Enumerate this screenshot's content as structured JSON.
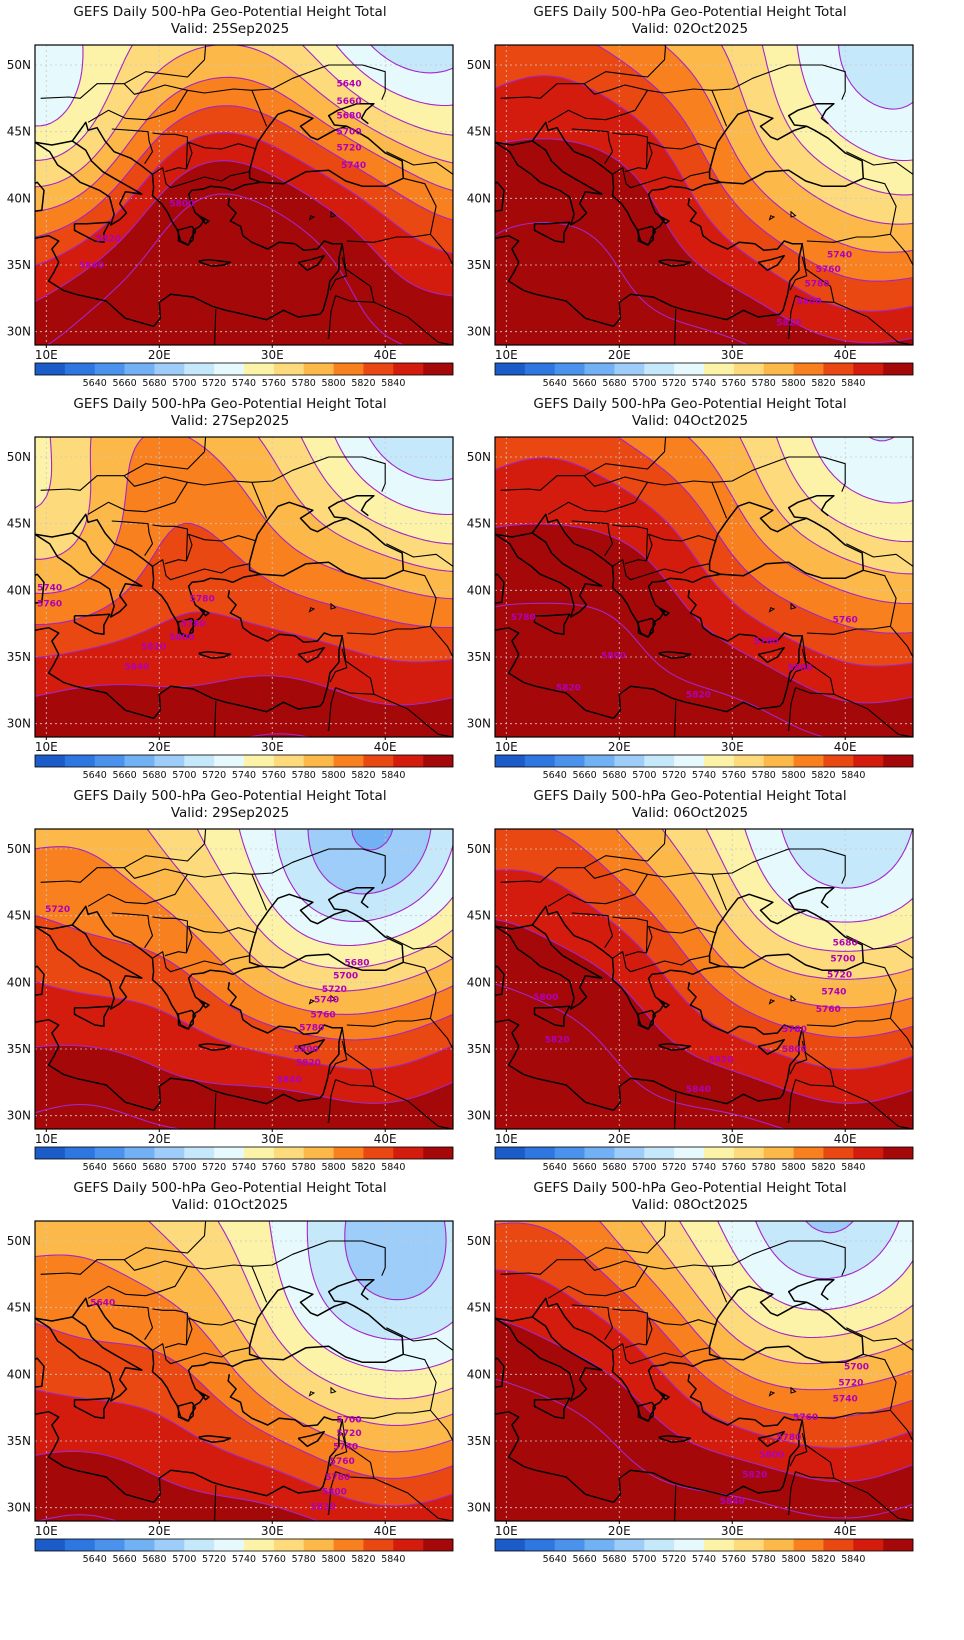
{
  "panels": [
    {
      "title": "GEFS Daily 500-hPa Geo-Potential Height Total",
      "valid": "Valid: 25Sep2025",
      "field": {
        "base": 5875,
        "grad": -4.2,
        "ridge": [
          {
            "x": 22,
            "y": 38,
            "a": 45,
            "s": 8
          },
          {
            "x": 34,
            "y": 40,
            "a": 40,
            "s": 8
          }
        ],
        "trough": [
          {
            "x": 10,
            "y": 46,
            "a": -75,
            "s": 7
          },
          {
            "x": 43,
            "y": 51,
            "a": -80,
            "s": 9
          }
        ]
      },
      "contour_labels": [
        {
          "v": "5640",
          "x": 36.8,
          "y": 48.6
        },
        {
          "v": "5660",
          "x": 36.8,
          "y": 47.3
        },
        {
          "v": "5680",
          "x": 36.8,
          "y": 46.2
        },
        {
          "v": "5700",
          "x": 36.8,
          "y": 45.0
        },
        {
          "v": "5720",
          "x": 36.8,
          "y": 43.8
        },
        {
          "v": "5740",
          "x": 37.2,
          "y": 42.5
        },
        {
          "v": "5800",
          "x": 22.0,
          "y": 39.6
        },
        {
          "v": "5820",
          "x": 15.5,
          "y": 37.0
        },
        {
          "v": "5840",
          "x": 14.0,
          "y": 35.0
        }
      ]
    },
    {
      "title": "GEFS Daily 500-hPa Geo-Potential Height Total",
      "valid": "Valid: 02Oct2025",
      "field": {
        "base": 5885,
        "grad": -4.0,
        "ridge": [
          {
            "x": 14,
            "y": 44,
            "a": 40,
            "s": 10
          }
        ],
        "trough": [
          {
            "x": 44,
            "y": 46,
            "a": -95,
            "s": 10
          }
        ]
      },
      "contour_labels": [
        {
          "v": "5740",
          "x": 39.5,
          "y": 35.8
        },
        {
          "v": "5760",
          "x": 38.5,
          "y": 34.7
        },
        {
          "v": "5780",
          "x": 37.5,
          "y": 33.6
        },
        {
          "v": "5800",
          "x": 36.8,
          "y": 32.3
        },
        {
          "v": "5820",
          "x": 35.0,
          "y": 30.7
        }
      ]
    },
    {
      "title": "GEFS Daily 500-hPa Geo-Potential Height Total",
      "valid": "Valid: 27Sep2025",
      "field": {
        "base": 5880,
        "grad": -4.1,
        "ridge": [
          {
            "x": 19,
            "y": 51,
            "a": 30,
            "s": 6
          }
        ],
        "trough": [
          {
            "x": 9,
            "y": 46,
            "a": -55,
            "s": 7
          },
          {
            "x": 45,
            "y": 51,
            "a": -85,
            "s": 9
          }
        ]
      },
      "contour_labels": [
        {
          "v": "5740",
          "x": 10.3,
          "y": 40.2
        },
        {
          "v": "5760",
          "x": 10.3,
          "y": 39.0
        },
        {
          "v": "5780",
          "x": 23.8,
          "y": 39.4
        },
        {
          "v": "5780",
          "x": 23.0,
          "y": 37.5
        },
        {
          "v": "5800",
          "x": 22.0,
          "y": 36.5
        },
        {
          "v": "5820",
          "x": 19.5,
          "y": 35.8
        },
        {
          "v": "5840",
          "x": 18.0,
          "y": 34.3
        }
      ]
    },
    {
      "title": "GEFS Daily 500-hPa Geo-Potential Height Total",
      "valid": "Valid: 04Oct2025",
      "field": {
        "base": 5890,
        "grad": -3.9,
        "ridge": [
          {
            "x": 14,
            "y": 44,
            "a": 35,
            "s": 11
          }
        ],
        "trough": [
          {
            "x": 44,
            "y": 49,
            "a": -85,
            "s": 10
          }
        ]
      },
      "contour_labels": [
        {
          "v": "5780",
          "x": 11.5,
          "y": 38.0
        },
        {
          "v": "5760",
          "x": 40.0,
          "y": 37.8
        },
        {
          "v": "5780",
          "x": 33.0,
          "y": 36.2
        },
        {
          "v": "5800",
          "x": 19.5,
          "y": 35.1
        },
        {
          "v": "5800",
          "x": 36.0,
          "y": 34.2
        },
        {
          "v": "5820",
          "x": 15.5,
          "y": 32.7
        },
        {
          "v": "5820",
          "x": 27.0,
          "y": 32.2
        }
      ]
    },
    {
      "title": "GEFS Daily 500-hPa Geo-Potential Height Total",
      "valid": "Valid: 29Sep2025",
      "field": {
        "base": 5885,
        "grad": -4.0,
        "ridge": [],
        "trough": [
          {
            "x": 36,
            "y": 48,
            "a": -90,
            "s": 9
          },
          {
            "x": 42,
            "y": 51,
            "a": -40,
            "s": 7
          }
        ]
      },
      "contour_labels": [
        {
          "v": "5720",
          "x": 11.0,
          "y": 45.5
        },
        {
          "v": "5680",
          "x": 37.5,
          "y": 41.5
        },
        {
          "v": "5700",
          "x": 36.5,
          "y": 40.5
        },
        {
          "v": "5720",
          "x": 35.5,
          "y": 39.5
        },
        {
          "v": "5740",
          "x": 34.8,
          "y": 38.7
        },
        {
          "v": "5760",
          "x": 34.5,
          "y": 37.6
        },
        {
          "v": "5780",
          "x": 33.5,
          "y": 36.6
        },
        {
          "v": "5800",
          "x": 33.0,
          "y": 35.0
        },
        {
          "v": "5820",
          "x": 33.2,
          "y": 34.0
        },
        {
          "v": "5840",
          "x": 31.5,
          "y": 32.7
        }
      ]
    },
    {
      "title": "GEFS Daily 500-hPa Geo-Potential Height Total",
      "valid": "Valid: 06Oct2025",
      "field": {
        "base": 5890,
        "grad": -4.0,
        "ridge": [
          {
            "x": 10,
            "y": 42,
            "a": 35,
            "s": 10
          }
        ],
        "trough": [
          {
            "x": 40,
            "y": 49,
            "a": -100,
            "s": 10
          }
        ]
      },
      "contour_labels": [
        {
          "v": "5680",
          "x": 40.0,
          "y": 43.0
        },
        {
          "v": "5700",
          "x": 39.8,
          "y": 41.8
        },
        {
          "v": "5720",
          "x": 39.5,
          "y": 40.6
        },
        {
          "v": "5740",
          "x": 39.0,
          "y": 39.3
        },
        {
          "v": "5760",
          "x": 38.5,
          "y": 38.0
        },
        {
          "v": "5780",
          "x": 35.5,
          "y": 36.5
        },
        {
          "v": "5800",
          "x": 13.5,
          "y": 38.9
        },
        {
          "v": "5800",
          "x": 35.5,
          "y": 35.0
        },
        {
          "v": "5820",
          "x": 14.5,
          "y": 35.7
        },
        {
          "v": "5820",
          "x": 29.0,
          "y": 34.2
        },
        {
          "v": "5840",
          "x": 27.0,
          "y": 32.0
        }
      ]
    },
    {
      "title": "GEFS Daily 500-hPa Geo-Potential Height Total",
      "valid": "Valid: 01Oct2025",
      "field": {
        "base": 5880,
        "grad": -4.0,
        "ridge": [],
        "trough": [
          {
            "x": 41,
            "y": 46,
            "a": -115,
            "s": 10
          }
        ]
      },
      "contour_labels": [
        {
          "v": "5640",
          "x": 15.0,
          "y": 45.4
        },
        {
          "v": "5700",
          "x": 36.8,
          "y": 36.6
        },
        {
          "v": "5720",
          "x": 36.8,
          "y": 35.6
        },
        {
          "v": "5740",
          "x": 36.5,
          "y": 34.6
        },
        {
          "v": "5760",
          "x": 36.2,
          "y": 33.5
        },
        {
          "v": "5780",
          "x": 35.8,
          "y": 32.3
        },
        {
          "v": "5800",
          "x": 35.5,
          "y": 31.2
        },
        {
          "v": "5820",
          "x": 34.5,
          "y": 30.1
        }
      ]
    },
    {
      "title": "GEFS Daily 500-hPa Geo-Potential Height Total",
      "valid": "Valid: 08Oct2025",
      "field": {
        "base": 5895,
        "grad": -4.1,
        "ridge": [
          {
            "x": 10,
            "y": 41,
            "a": 30,
            "s": 10
          }
        ],
        "trough": [
          {
            "x": 38,
            "y": 50,
            "a": -105,
            "s": 10
          }
        ]
      },
      "contour_labels": [
        {
          "v": "5700",
          "x": 41.0,
          "y": 40.6
        },
        {
          "v": "5720",
          "x": 40.5,
          "y": 39.4
        },
        {
          "v": "5740",
          "x": 40.0,
          "y": 38.2
        },
        {
          "v": "5760",
          "x": 36.5,
          "y": 36.8
        },
        {
          "v": "5780",
          "x": 35.0,
          "y": 35.3
        },
        {
          "v": "5800",
          "x": 33.5,
          "y": 34.0
        },
        {
          "v": "5820",
          "x": 32.0,
          "y": 32.5
        },
        {
          "v": "5840",
          "x": 30.0,
          "y": 30.5
        }
      ]
    }
  ],
  "axes": {
    "x_ticks": [
      "10E",
      "20E",
      "30E",
      "40E"
    ],
    "y_ticks": [
      "50N",
      "45N",
      "40N",
      "35N",
      "30N"
    ]
  },
  "colorbar": {
    "labels": [
      "5640",
      "5660",
      "5680",
      "5700",
      "5720",
      "5740",
      "5760",
      "5780",
      "5800",
      "5820",
      "5840"
    ],
    "colors": [
      "#1c5cc8",
      "#2e77e0",
      "#4a92ec",
      "#72b1f4",
      "#9dcdf8",
      "#c6e8fb",
      "#e6f9fc",
      "#fcf3a8",
      "#fddb7c",
      "#fcb849",
      "#f8801f",
      "#ea4813",
      "#d41c0e",
      "#a50808"
    ],
    "contour_color": "#a326c8"
  }
}
